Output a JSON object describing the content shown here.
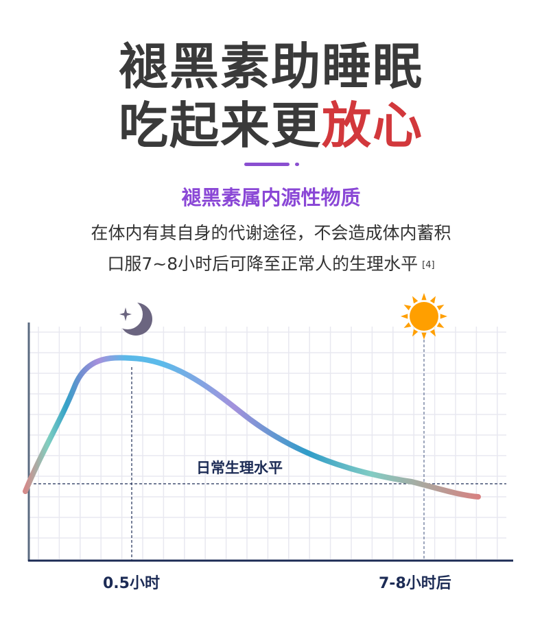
{
  "title": {
    "line1": "褪黑素助睡眠",
    "line2_prefix": "吃起来更",
    "line2_accent": "放心"
  },
  "subtitle": "褪黑素属内源性物质",
  "body": {
    "line1": "在体内有其自身的代谢途径，不会造成体内蓄积",
    "line2": "口服7~8小时后可降至正常人的生理水平",
    "ref": "[4]"
  },
  "diagram": {
    "level_label": "日常生理水平",
    "x_labels": [
      "0.5小时",
      "7-8小时后"
    ],
    "icons": [
      "moon-star-icon",
      "sun-icon"
    ],
    "colors": {
      "accent": "#d2383c",
      "purple": "#8a47d6",
      "axis": "#1c2b55",
      "sun": "#ff9f00",
      "moon": "#6b6580"
    }
  }
}
